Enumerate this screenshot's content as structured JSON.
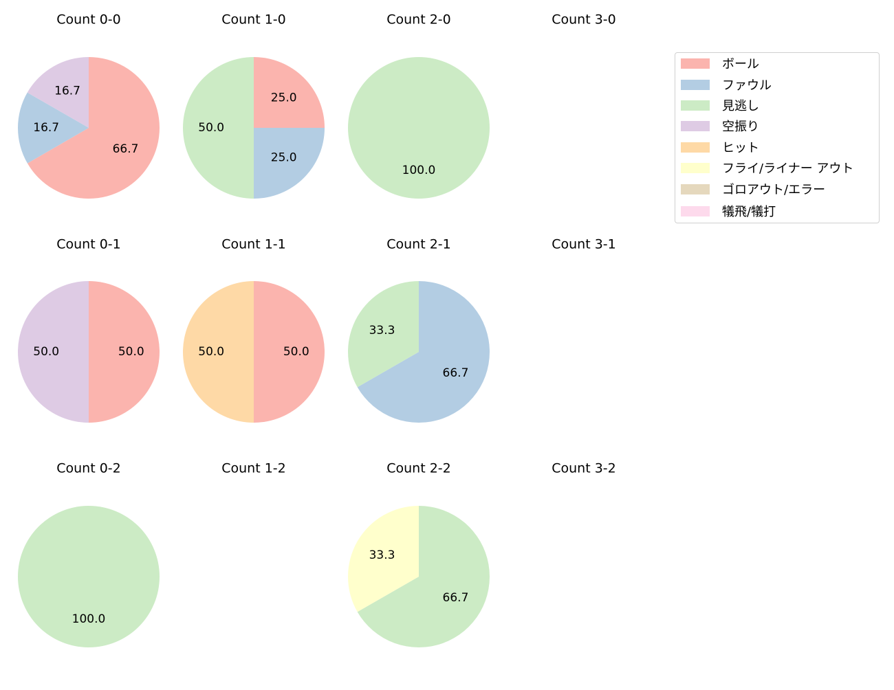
{
  "chart_data": {
    "type": "pie",
    "title": "",
    "layout": {
      "rows": 3,
      "cols": 4,
      "start_angle": 90,
      "direction": "clockwise",
      "legend_position": "upper right"
    },
    "legend": [
      {
        "label": "ボール",
        "color": "#fbb4ae"
      },
      {
        "label": "ファウル",
        "color": "#b3cde3"
      },
      {
        "label": "見逃し",
        "color": "#ccebc5"
      },
      {
        "label": "空振り",
        "color": "#decbe4"
      },
      {
        "label": "ヒット",
        "color": "#fed9a6"
      },
      {
        "label": "フライ/ライナー アウト",
        "color": "#ffffcc"
      },
      {
        "label": "ゴロアウト/エラー",
        "color": "#e5d8bd"
      },
      {
        "label": "犠飛/犠打",
        "color": "#fddaec"
      }
    ],
    "panels": [
      {
        "title": "Count 0-0",
        "slices": [
          {
            "category": "ボール",
            "value": 66.7
          },
          {
            "category": "ファウル",
            "value": 16.7
          },
          {
            "category": "空振り",
            "value": 16.7
          }
        ]
      },
      {
        "title": "Count 1-0",
        "slices": [
          {
            "category": "ボール",
            "value": 25.0
          },
          {
            "category": "ファウル",
            "value": 25.0
          },
          {
            "category": "見逃し",
            "value": 50.0
          }
        ]
      },
      {
        "title": "Count 2-0",
        "slices": [
          {
            "category": "見逃し",
            "value": 100.0
          }
        ]
      },
      {
        "title": "Count 3-0",
        "slices": []
      },
      {
        "title": "Count 0-1",
        "slices": [
          {
            "category": "ボール",
            "value": 50.0
          },
          {
            "category": "空振り",
            "value": 50.0
          }
        ]
      },
      {
        "title": "Count 1-1",
        "slices": [
          {
            "category": "ボール",
            "value": 50.0
          },
          {
            "category": "ヒット",
            "value": 50.0
          }
        ]
      },
      {
        "title": "Count 2-1",
        "slices": [
          {
            "category": "ファウル",
            "value": 66.7
          },
          {
            "category": "見逃し",
            "value": 33.3
          }
        ]
      },
      {
        "title": "Count 3-1",
        "slices": []
      },
      {
        "title": "Count 0-2",
        "slices": [
          {
            "category": "見逃し",
            "value": 100.0
          }
        ]
      },
      {
        "title": "Count 1-2",
        "slices": []
      },
      {
        "title": "Count 2-2",
        "slices": [
          {
            "category": "見逃し",
            "value": 66.7
          },
          {
            "category": "フライ/ライナー アウト",
            "value": 33.3
          }
        ]
      },
      {
        "title": "Count 3-2",
        "slices": []
      }
    ]
  }
}
